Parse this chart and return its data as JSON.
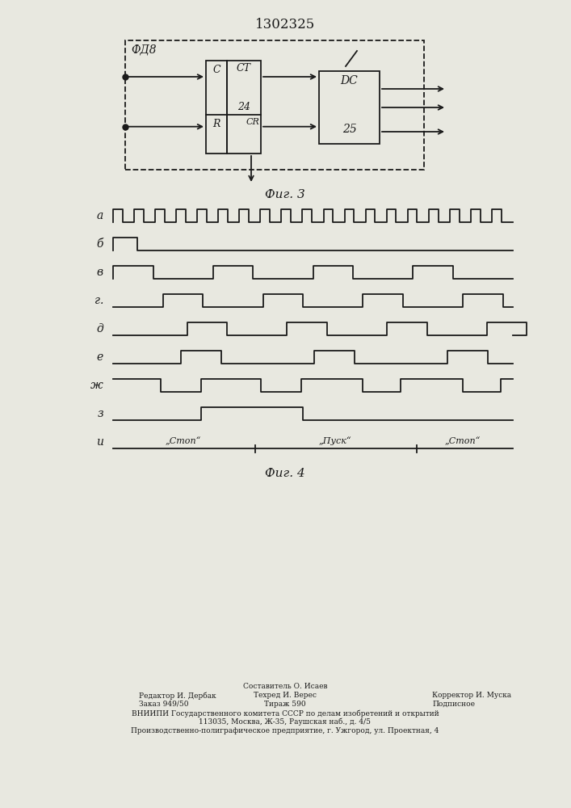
{
  "title_text": "1302325",
  "fig3_label": "ФД8",
  "fig3_ct_label": "CT",
  "fig3_c_label": "C",
  "fig3_r_label": "R",
  "fig3_24_label": "24",
  "fig3_cr_label": "CR",
  "fig3_dc_label": "DC",
  "fig3_25_label": "25",
  "fig3_caption": "Фиг. 3",
  "fig4_caption": "Фиг. 4",
  "waveform_labels": [
    "а",
    "б",
    "в",
    "г.",
    "д",
    "е",
    "ж",
    "з",
    "и"
  ],
  "stop1_label": "„Cтоп“",
  "pusk_label": "„Пуск“",
  "stop2_label": "„Стоп“",
  "footer_line0_center": "Составитель О. Исаев",
  "footer_line1_left": "Редактор И. Дербак",
  "footer_line1_center": "Техред И. Верес",
  "footer_line1_right": "Корректор И. Муска",
  "footer_line2_left": "Заказ 949/50",
  "footer_line2_center": "Тираж 590",
  "footer_line2_right": "Подписное",
  "footer_line3": "ВНИИПИ Государственного комитета СССР по делам изобретений и открытий",
  "footer_line4": "113035, Москва, Ж-35, Раушская наб., д. 4/5",
  "footer_line5": "Производственно-полиграфическое предприятие, г. Ужгород, ул. Проектная, 4",
  "bg_color": "#e8e8e0",
  "line_color": "#1a1a1a"
}
